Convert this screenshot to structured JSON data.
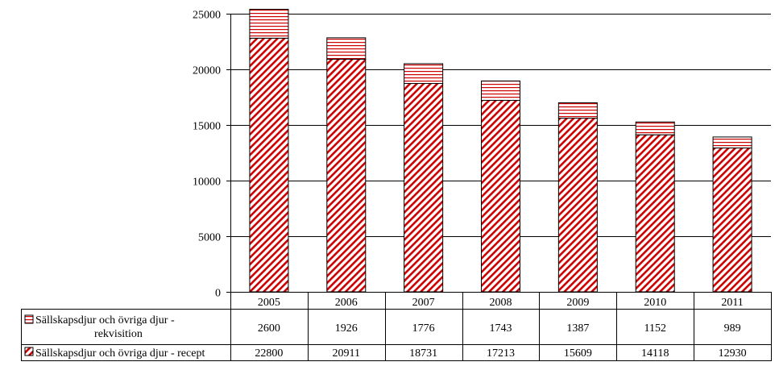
{
  "chart_data": {
    "type": "bar",
    "stacked": true,
    "categories": [
      "2005",
      "2006",
      "2007",
      "2008",
      "2009",
      "2010",
      "2011"
    ],
    "series": [
      {
        "name": "Sällskapsdjur och övriga djur - recept",
        "values": [
          22800,
          20911,
          18731,
          17213,
          15609,
          14118,
          12930
        ],
        "color": "#cc0000",
        "pattern": "diagonal-hatch"
      },
      {
        "name": "Sällskapsdjur och övriga djur - rekvisition",
        "legend_lines": [
          "Sällskapsdjur och övriga djur -",
          "rekvisition"
        ],
        "values": [
          2600,
          1926,
          1776,
          1743,
          1387,
          1152,
          989
        ],
        "color": "#cc0000",
        "pattern": "horizontal-lines"
      }
    ],
    "y_ticks": [
      "0",
      "5000",
      "10000",
      "15000",
      "20000",
      "25000"
    ],
    "ylim": [
      0,
      25000
    ],
    "grid": true,
    "data_table": true
  }
}
